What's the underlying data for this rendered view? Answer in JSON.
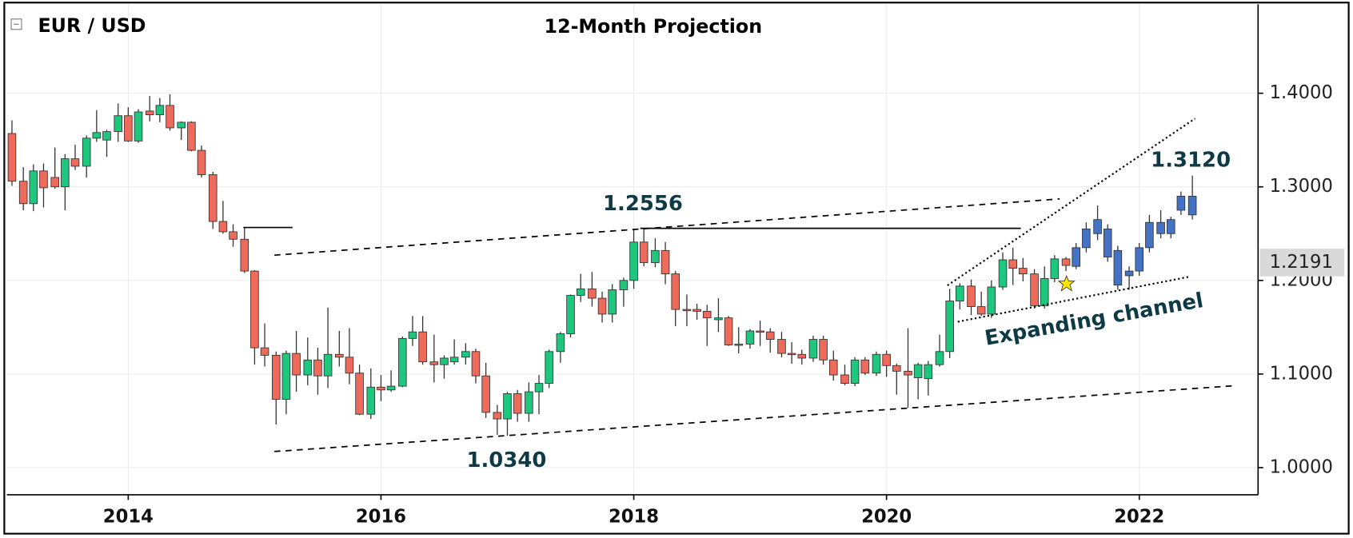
{
  "chart_data": {
    "type": "candlestick",
    "title": "12-Month Projection",
    "symbol": "EUR / USD",
    "annotations": [
      "1.2556",
      "1.0340",
      "1.3120",
      "Expanding channel"
    ],
    "current_price": 1.2191,
    "up_color": "#1dc77e",
    "down_color": "#ee6a5b",
    "xlim": [
      2013.04,
      2022.94
    ],
    "ylim": [
      0.971,
      1.495
    ],
    "xticks": [
      2014,
      2016,
      2018,
      2020,
      2022
    ],
    "yticks": [
      {
        "value": 1.0,
        "label": "1.0000"
      },
      {
        "value": 1.1,
        "label": "1.1000"
      },
      {
        "value": 1.2,
        "label": "1.2000"
      },
      {
        "value": 1.3,
        "label": "1.3000"
      },
      {
        "value": 1.4,
        "label": "1.4000"
      }
    ],
    "grid": true,
    "x": [
      2013.08,
      2013.17,
      2013.25,
      2013.33,
      2013.42,
      2013.5,
      2013.58,
      2013.67,
      2013.75,
      2013.83,
      2013.92,
      2014.0,
      2014.08,
      2014.17,
      2014.25,
      2014.33,
      2014.42,
      2014.5,
      2014.58,
      2014.67,
      2014.75,
      2014.83,
      2014.92,
      2015.0,
      2015.08,
      2015.17,
      2015.25,
      2015.33,
      2015.42,
      2015.5,
      2015.58,
      2015.67,
      2015.75,
      2015.83,
      2015.92,
      2016.0,
      2016.08,
      2016.17,
      2016.25,
      2016.33,
      2016.42,
      2016.5,
      2016.58,
      2016.67,
      2016.75,
      2016.83,
      2016.92,
      2017.0,
      2017.08,
      2017.17,
      2017.25,
      2017.33,
      2017.42,
      2017.5,
      2017.58,
      2017.67,
      2017.75,
      2017.83,
      2017.92,
      2018.0,
      2018.08,
      2018.17,
      2018.25,
      2018.33,
      2018.42,
      2018.5,
      2018.58,
      2018.67,
      2018.75,
      2018.83,
      2018.92,
      2019.0,
      2019.08,
      2019.17,
      2019.25,
      2019.33,
      2019.42,
      2019.5,
      2019.58,
      2019.67,
      2019.75,
      2019.83,
      2019.92,
      2020.0,
      2020.08,
      2020.17,
      2020.25,
      2020.33,
      2020.42,
      2020.5,
      2020.58,
      2020.67,
      2020.75,
      2020.83,
      2020.92,
      2021.0,
      2021.08,
      2021.17,
      2021.25,
      2021.33,
      2021.42
    ],
    "open": [
      1.357,
      1.306,
      1.282,
      1.317,
      1.31,
      1.3,
      1.33,
      1.322,
      1.352,
      1.35,
      1.359,
      1.376,
      1.349,
      1.381,
      1.377,
      1.387,
      1.363,
      1.369,
      1.339,
      1.313,
      1.263,
      1.252,
      1.244,
      1.21,
      1.128,
      1.12,
      1.073,
      1.122,
      1.099,
      1.115,
      1.098,
      1.121,
      1.118,
      1.101,
      1.057,
      1.086,
      1.083,
      1.087,
      1.138,
      1.145,
      1.113,
      1.11,
      1.113,
      1.118,
      1.124,
      1.098,
      1.059,
      1.052,
      1.079,
      1.058,
      1.081,
      1.09,
      1.124,
      1.143,
      1.184,
      1.191,
      1.181,
      1.164,
      1.19,
      1.2,
      1.241,
      1.219,
      1.232,
      1.207,
      1.169,
      1.169,
      1.167,
      1.158,
      1.16,
      1.131,
      1.132,
      1.146,
      1.145,
      1.137,
      1.122,
      1.121,
      1.117,
      1.137,
      1.115,
      1.099,
      1.09,
      1.115,
      1.101,
      1.121,
      1.109,
      1.103,
      1.096,
      1.095,
      1.11,
      1.124,
      1.178,
      1.194,
      1.172,
      1.164,
      1.193,
      1.222,
      1.213,
      1.207,
      1.173,
      1.202,
      1.223
    ],
    "high": [
      1.371,
      1.321,
      1.324,
      1.325,
      1.342,
      1.335,
      1.345,
      1.355,
      1.382,
      1.361,
      1.389,
      1.385,
      1.383,
      1.397,
      1.395,
      1.399,
      1.37,
      1.37,
      1.344,
      1.316,
      1.285,
      1.26,
      1.257,
      1.211,
      1.154,
      1.124,
      1.125,
      1.146,
      1.139,
      1.128,
      1.171,
      1.146,
      1.149,
      1.11,
      1.106,
      1.099,
      1.104,
      1.14,
      1.162,
      1.162,
      1.142,
      1.12,
      1.137,
      1.133,
      1.127,
      1.112,
      1.067,
      1.081,
      1.083,
      1.091,
      1.099,
      1.126,
      1.145,
      1.185,
      1.207,
      1.209,
      1.188,
      1.196,
      1.203,
      1.254,
      1.256,
      1.245,
      1.241,
      1.21,
      1.185,
      1.175,
      1.174,
      1.181,
      1.162,
      1.15,
      1.148,
      1.157,
      1.149,
      1.145,
      1.134,
      1.126,
      1.141,
      1.141,
      1.125,
      1.11,
      1.118,
      1.118,
      1.124,
      1.125,
      1.111,
      1.149,
      1.112,
      1.114,
      1.142,
      1.191,
      1.197,
      1.201,
      1.188,
      1.2,
      1.23,
      1.235,
      1.224,
      1.212,
      1.215,
      1.227,
      1.225
    ],
    "low": [
      1.301,
      1.275,
      1.274,
      1.278,
      1.298,
      1.275,
      1.318,
      1.31,
      1.348,
      1.332,
      1.348,
      1.348,
      1.347,
      1.37,
      1.369,
      1.36,
      1.35,
      1.338,
      1.31,
      1.255,
      1.25,
      1.236,
      1.208,
      1.11,
      1.108,
      1.046,
      1.057,
      1.081,
      1.088,
      1.078,
      1.085,
      1.108,
      1.089,
      1.056,
      1.052,
      1.071,
      1.081,
      1.086,
      1.13,
      1.11,
      1.091,
      1.095,
      1.11,
      1.11,
      1.09,
      1.053,
      1.035,
      1.034,
      1.049,
      1.049,
      1.057,
      1.085,
      1.112,
      1.139,
      1.177,
      1.172,
      1.155,
      1.155,
      1.172,
      1.191,
      1.215,
      1.214,
      1.196,
      1.151,
      1.151,
      1.158,
      1.13,
      1.145,
      1.13,
      1.122,
      1.127,
      1.13,
      1.123,
      1.118,
      1.111,
      1.11,
      1.113,
      1.11,
      1.093,
      1.088,
      1.087,
      1.099,
      1.098,
      1.097,
      1.078,
      1.064,
      1.073,
      1.077,
      1.108,
      1.117,
      1.169,
      1.163,
      1.162,
      1.16,
      1.19,
      1.195,
      1.199,
      1.17,
      1.17,
      1.198,
      1.21
    ],
    "close": [
      1.306,
      1.282,
      1.317,
      1.299,
      1.3,
      1.33,
      1.322,
      1.352,
      1.358,
      1.359,
      1.376,
      1.349,
      1.38,
      1.377,
      1.387,
      1.363,
      1.369,
      1.339,
      1.313,
      1.263,
      1.252,
      1.244,
      1.21,
      1.128,
      1.12,
      1.073,
      1.122,
      1.099,
      1.115,
      1.098,
      1.121,
      1.118,
      1.101,
      1.057,
      1.086,
      1.083,
      1.087,
      1.138,
      1.145,
      1.113,
      1.11,
      1.117,
      1.118,
      1.124,
      1.098,
      1.059,
      1.052,
      1.079,
      1.058,
      1.081,
      1.09,
      1.124,
      1.143,
      1.184,
      1.191,
      1.181,
      1.164,
      1.19,
      1.2,
      1.241,
      1.219,
      1.232,
      1.207,
      1.169,
      1.168,
      1.167,
      1.16,
      1.16,
      1.131,
      1.132,
      1.146,
      1.145,
      1.137,
      1.122,
      1.121,
      1.117,
      1.137,
      1.115,
      1.099,
      1.09,
      1.115,
      1.101,
      1.121,
      1.109,
      1.103,
      1.099,
      1.11,
      1.11,
      1.124,
      1.178,
      1.194,
      1.172,
      1.164,
      1.193,
      1.222,
      1.213,
      1.207,
      1.173,
      1.202,
      1.223,
      1.216
    ],
    "projection": {
      "color": "#4472c4",
      "x": [
        2021.5,
        2021.58,
        2021.67,
        2021.75,
        2021.83,
        2021.92,
        2022.0,
        2022.08,
        2022.17,
        2022.25,
        2022.33,
        2022.42
      ],
      "open": [
        1.215,
        1.235,
        1.25,
        1.255,
        1.232,
        1.205,
        1.21,
        1.235,
        1.25,
        1.25,
        1.275,
        1.27
      ],
      "high": [
        1.24,
        1.262,
        1.28,
        1.26,
        1.237,
        1.215,
        1.24,
        1.27,
        1.275,
        1.268,
        1.295,
        1.312
      ],
      "low": [
        1.212,
        1.23,
        1.243,
        1.22,
        1.19,
        1.19,
        1.205,
        1.23,
        1.245,
        1.245,
        1.27,
        1.265
      ],
      "close": [
        1.235,
        1.255,
        1.265,
        1.225,
        1.195,
        1.21,
        1.235,
        1.262,
        1.262,
        1.265,
        1.29,
        1.29
      ]
    }
  }
}
